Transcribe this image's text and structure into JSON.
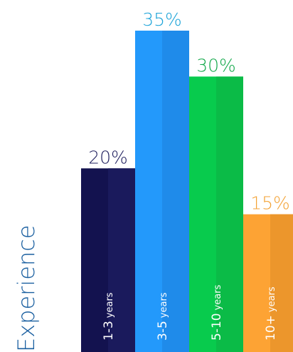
{
  "chart_data": {
    "type": "bar",
    "ylabel": "Experience",
    "categories": [
      {
        "main": "1-3",
        "suffix": "years"
      },
      {
        "main": "3-5",
        "suffix": "years"
      },
      {
        "main": "5-10",
        "suffix": "years"
      },
      {
        "main": "10+",
        "suffix": "years"
      }
    ],
    "values": [
      20,
      35,
      30,
      15
    ],
    "value_labels": [
      "20%",
      "35%",
      "30%",
      "15%"
    ],
    "ylim": [
      0,
      35
    ],
    "colors": [
      {
        "bar": "#13124f",
        "shade": "#1a1a5c",
        "label": "#1f1f5e"
      },
      {
        "bar": "#2399fb",
        "shade": "#1f8bea",
        "label": "#1ba3d8"
      },
      {
        "bar": "#08cb4d",
        "shade": "#0bbb47",
        "label": "#12a84a"
      },
      {
        "bar": "#fda334",
        "shade": "#ec962c",
        "label": "#f3a235"
      }
    ]
  }
}
